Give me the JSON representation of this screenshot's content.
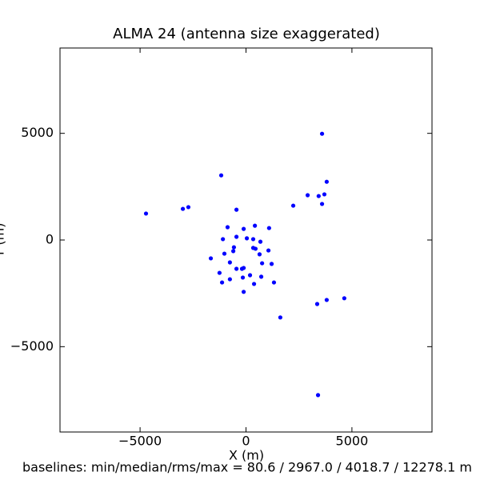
{
  "chart_data": {
    "type": "scatter",
    "title": "ALMA 24 (antenna size exaggerated)",
    "x_label": "X (m)",
    "y_label": "Y (m)",
    "footer": "baselines: min/median/rms/max = 80.6 / 2967.0 / 4018.7 / 12278.1 m",
    "color": "#0000ff",
    "xlim": [
      -8780,
      8780
    ],
    "ylim": [
      -9000,
      9000
    ],
    "xticks": [
      {
        "value": -5000,
        "label": "−5000"
      },
      0,
      5000
    ],
    "yticks": [
      {
        "value": -5000,
        "label": "−5000"
      },
      0,
      5000
    ],
    "x": [
      3590,
      -1170,
      3810,
      2910,
      3430,
      3700,
      3590,
      2230,
      -4720,
      -2980,
      -2720,
      -450,
      -870,
      420,
      -110,
      1090,
      -450,
      -1090,
      40,
      340,
      680,
      -570,
      -600,
      340,
      450,
      1060,
      -1020,
      640,
      -1660,
      -760,
      760,
      1210,
      -450,
      -190,
      -110,
      -1250,
      190,
      -150,
      720,
      -760,
      -1130,
      1320,
      380,
      -110,
      4640,
      3810,
      3360,
      1620,
      3400
    ],
    "y": [
      4980,
      3030,
      2730,
      2100,
      2060,
      2140,
      1690,
      1610,
      1240,
      1460,
      1540,
      1420,
      600,
      670,
      520,
      560,
      150,
      40,
      80,
      40,
      -80,
      -340,
      -520,
      -370,
      -410,
      -490,
      -640,
      -670,
      -860,
      -1050,
      -1090,
      -1120,
      -1350,
      -1350,
      -1310,
      -1540,
      -1650,
      -1760,
      -1720,
      -1840,
      -1990,
      -1990,
      -2060,
      -2430,
      -2730,
      -2810,
      -3000,
      -3630,
      -7270
    ]
  }
}
